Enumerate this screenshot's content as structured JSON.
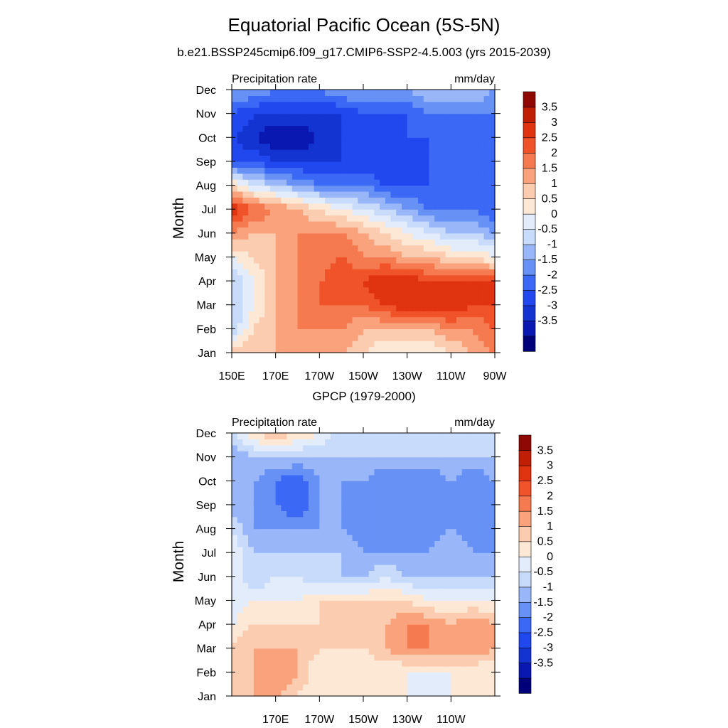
{
  "figure": {
    "title": "Equatorial Pacific Ocean (5S-5N)",
    "subtitle": "b.e21.BSSP245cmip6.f09_g17.CMIP6-SSP2-4.5.003 (yrs 2015-2039)"
  },
  "chart_data": [
    {
      "type": "heatmap",
      "title": "",
      "left_label": "Precipitation rate",
      "right_label": "mm/day",
      "ylabel": "Month",
      "x_ticks": [
        "150E",
        "170E",
        "170W",
        "150W",
        "130W",
        "110W",
        "90W"
      ],
      "x_tick_values": [
        150,
        170,
        190,
        210,
        230,
        250,
        270
      ],
      "xlim": [
        150,
        270
      ],
      "y_ticks": [
        "Jan",
        "Feb",
        "Mar",
        "Apr",
        "May",
        "Jun",
        "Jul",
        "Aug",
        "Sep",
        "Oct",
        "Nov",
        "Dec"
      ],
      "colorbar_labels": [
        "3.5",
        "3",
        "2.5",
        "2",
        "1.5",
        "1",
        "0.5",
        "0",
        "-0.5",
        "-1",
        "-1.5",
        "-2",
        "-2.5",
        "-3",
        "-3.5"
      ],
      "lon": [
        150,
        160,
        170,
        180,
        190,
        200,
        210,
        220,
        230,
        240,
        250,
        260,
        270
      ],
      "values": [
        [
          1.5,
          1.5,
          1.5,
          2.0,
          1.5,
          1.5,
          1.0,
          0.5,
          0.5,
          0.5,
          1.0,
          1.5,
          2.0
        ],
        [
          -0.5,
          1.0,
          1.5,
          2.0,
          2.0,
          2.0,
          1.5,
          1.5,
          1.5,
          1.5,
          2.0,
          2.0,
          2.5
        ],
        [
          -0.5,
          0.5,
          1.5,
          2.0,
          2.5,
          2.5,
          2.5,
          3.0,
          3.5,
          3.5,
          3.5,
          3.0,
          3.0
        ],
        [
          -0.5,
          0.5,
          1.5,
          2.0,
          2.5,
          3.0,
          3.0,
          3.5,
          3.5,
          3.0,
          3.0,
          3.0,
          3.0
        ],
        [
          0.5,
          1.0,
          1.5,
          2.0,
          2.0,
          2.5,
          2.0,
          2.0,
          1.5,
          1.5,
          1.0,
          1.0,
          0.5
        ],
        [
          2.0,
          1.5,
          1.5,
          2.0,
          2.0,
          2.0,
          1.5,
          1.0,
          0.5,
          0.0,
          -0.5,
          -0.5,
          -1.0
        ],
        [
          3.5,
          2.5,
          2.0,
          1.5,
          1.0,
          0.5,
          0.0,
          -0.5,
          -1.0,
          -1.5,
          -1.5,
          -1.5,
          -2.0
        ],
        [
          1.0,
          0.0,
          -0.5,
          -1.0,
          -1.5,
          -1.5,
          -1.5,
          -2.0,
          -2.0,
          -2.0,
          -2.0,
          -2.0,
          -2.0
        ],
        [
          -2.0,
          -2.0,
          -2.5,
          -2.5,
          -2.5,
          -2.5,
          -2.5,
          -2.5,
          -2.5,
          -2.0,
          -2.0,
          -2.0,
          -2.0
        ],
        [
          -2.5,
          -3.0,
          -3.5,
          -3.5,
          -3.0,
          -2.5,
          -2.5,
          -2.5,
          -2.0,
          -2.0,
          -2.0,
          -2.0,
          -2.0
        ],
        [
          -2.0,
          -2.5,
          -2.5,
          -2.5,
          -2.5,
          -2.5,
          -2.0,
          -2.0,
          -2.0,
          -1.5,
          -1.5,
          -1.5,
          -1.5
        ],
        [
          -1.0,
          -1.0,
          -1.5,
          -1.5,
          -1.5,
          -1.0,
          -1.0,
          -1.0,
          -1.0,
          -0.5,
          -0.5,
          -0.5,
          -1.0
        ]
      ]
    },
    {
      "type": "heatmap",
      "title": "GPCP (1979-2000)",
      "left_label": "Precipitation rate",
      "right_label": "mm/day",
      "ylabel": "Month",
      "x_ticks": [
        "170E",
        "170W",
        "150W",
        "130W",
        "110W"
      ],
      "x_tick_values": [
        170,
        190,
        210,
        230,
        250
      ],
      "xlim": [
        150,
        270
      ],
      "y_ticks": [
        "Jan",
        "Feb",
        "Mar",
        "Apr",
        "May",
        "Jun",
        "Jul",
        "Aug",
        "Sep",
        "Oct",
        "Nov",
        "Dec"
      ],
      "colorbar_labels": [
        "3.5",
        "3",
        "2.5",
        "2",
        "1.5",
        "1",
        "0.5",
        "0",
        "-0.5",
        "-1",
        "-1.5",
        "-2",
        "-2.5",
        "-3",
        "-3.5"
      ],
      "lon": [
        150,
        160,
        170,
        180,
        190,
        200,
        210,
        220,
        230,
        240,
        250,
        260,
        270
      ],
      "values": [
        [
          1.0,
          1.5,
          1.5,
          1.0,
          0.5,
          0.5,
          0.5,
          0.5,
          0.5,
          0.0,
          0.5,
          0.5,
          0.5
        ],
        [
          1.0,
          1.5,
          2.0,
          1.5,
          0.5,
          0.5,
          0.5,
          0.5,
          0.5,
          0.5,
          0.5,
          0.5,
          0.5
        ],
        [
          1.0,
          1.5,
          1.5,
          1.5,
          1.0,
          1.0,
          1.0,
          1.5,
          2.0,
          2.0,
          2.0,
          2.0,
          1.5
        ],
        [
          0.5,
          1.0,
          1.0,
          1.0,
          1.0,
          1.0,
          1.5,
          1.5,
          2.0,
          2.0,
          1.5,
          2.0,
          1.5
        ],
        [
          0.0,
          0.5,
          0.5,
          0.5,
          1.0,
          1.0,
          1.0,
          1.0,
          1.0,
          0.5,
          0.5,
          0.5,
          0.5
        ],
        [
          0.5,
          -0.5,
          0.0,
          0.0,
          -0.5,
          -0.5,
          -0.5,
          0.0,
          -0.5,
          -0.5,
          -0.5,
          -0.5,
          -0.5
        ],
        [
          0.5,
          -0.5,
          -0.5,
          -0.5,
          -0.5,
          -0.5,
          -1.0,
          -1.0,
          -1.0,
          -1.0,
          -0.5,
          -1.0,
          -1.0
        ],
        [
          0.0,
          -1.0,
          -1.0,
          -1.0,
          -1.0,
          -1.0,
          -1.5,
          -1.5,
          -1.5,
          -1.5,
          -1.0,
          -1.5,
          -1.0
        ],
        [
          -1.0,
          -1.0,
          -1.5,
          -2.0,
          -1.0,
          -1.0,
          -1.5,
          -1.5,
          -1.5,
          -1.5,
          -1.0,
          -1.5,
          -1.0
        ],
        [
          -1.0,
          -1.0,
          -1.5,
          -2.0,
          -1.0,
          -1.0,
          -1.0,
          -1.5,
          -1.5,
          -1.5,
          -1.0,
          -1.5,
          -1.0
        ],
        [
          -1.0,
          -0.5,
          -0.5,
          -0.5,
          -0.5,
          -0.5,
          -0.5,
          -0.5,
          -0.5,
          -0.5,
          -0.5,
          -0.5,
          -0.5
        ],
        [
          0.0,
          1.0,
          1.5,
          1.0,
          0.5,
          -0.5,
          -0.5,
          -0.5,
          -0.5,
          -0.5,
          -0.5,
          -0.5,
          -0.5
        ]
      ]
    }
  ],
  "palette": [
    "#00007a",
    "#0a18b2",
    "#1434d2",
    "#2148ee",
    "#3b68f4",
    "#6791f5",
    "#98b6f8",
    "#c9dbfa",
    "#e2ecfb",
    "#fde8d6",
    "#fcccb0",
    "#f9a27c",
    "#f57a50",
    "#f0522a",
    "#e0330f",
    "#c01e05",
    "#8f0804"
  ],
  "levels": [
    -3.5,
    -3,
    -2.5,
    -2,
    -1.5,
    -1,
    -0.5,
    0,
    0.5,
    1,
    1.5,
    2,
    2.5,
    3,
    3.5
  ]
}
